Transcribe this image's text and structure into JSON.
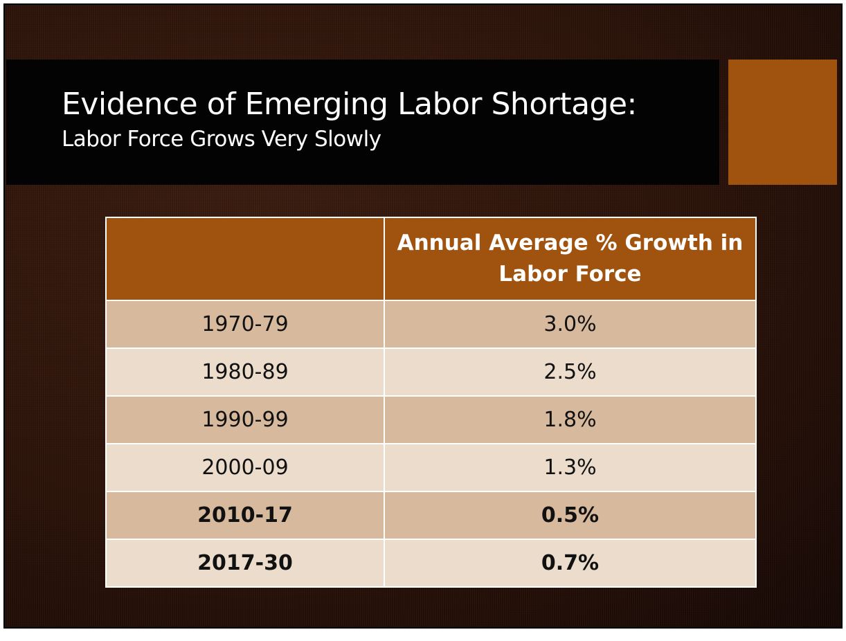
{
  "slide": {
    "title": "Evidence of Emerging Labor Shortage:",
    "subtitle": "Labor Force Grows Very Slowly",
    "colors": {
      "accent": "#a0520f",
      "row_dark": "#d7b99d",
      "row_light": "#ebdccc",
      "title_bar": "#030303"
    }
  },
  "table": {
    "headers": [
      "",
      "Annual Average % Growth in Labor Force"
    ],
    "rows": [
      {
        "period": "1970-79",
        "growth": "3.0%"
      },
      {
        "period": "1980-89",
        "growth": "2.5%"
      },
      {
        "period": "1990-99",
        "growth": "1.8%"
      },
      {
        "period": "2000-09",
        "growth": "1.3%"
      },
      {
        "period": "2010-17",
        "growth": "0.5%"
      },
      {
        "period": "2017-30",
        "growth": "0.7%"
      }
    ]
  }
}
